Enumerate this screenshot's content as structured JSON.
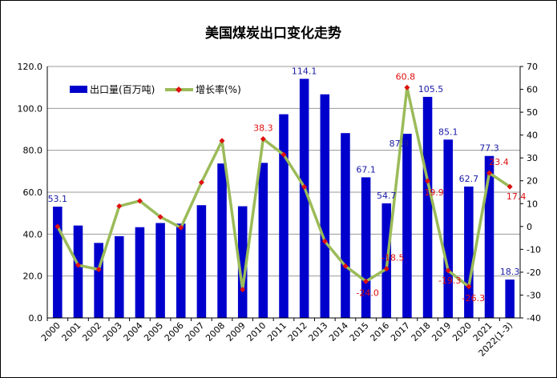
{
  "chart_data": {
    "type": "bar+line",
    "title": "美国煤炭出口变化走势",
    "categories": [
      "2000",
      "2001",
      "2002",
      "2003",
      "2004",
      "2005",
      "2006",
      "2007",
      "2008",
      "2009",
      "2010",
      "2011",
      "2012",
      "2013",
      "2014",
      "2015",
      "2016",
      "2017",
      "2018",
      "2019",
      "2020",
      "2021",
      "2022(1-3)"
    ],
    "series": [
      {
        "name": "出口量(百万吨)",
        "type": "bar",
        "axis": "left",
        "color": "#0000cc",
        "values": [
          53.1,
          44.1,
          35.8,
          39.0,
          43.3,
          45.3,
          45.0,
          53.8,
          73.7,
          53.3,
          74.0,
          97.2,
          114.1,
          106.7,
          88.2,
          67.1,
          54.7,
          87.9,
          105.5,
          85.1,
          62.7,
          77.3,
          18.3
        ]
      },
      {
        "name": "增长率(%)",
        "type": "line",
        "axis": "right",
        "color": "#9bbb59",
        "marker_color": "#e01010",
        "values": [
          0.0,
          -16.9,
          -18.8,
          8.9,
          11.2,
          4.2,
          -0.5,
          19.3,
          37.5,
          -27.6,
          38.3,
          31.4,
          17.3,
          -6.5,
          -17.3,
          -24.0,
          -18.5,
          60.8,
          19.9,
          -19.3,
          -26.3,
          23.4,
          17.4
        ]
      }
    ],
    "bar_labels": [
      {
        "index": 0,
        "text": "53.1"
      },
      {
        "index": 12,
        "text": "114.1"
      },
      {
        "index": 15,
        "text": "67.1"
      },
      {
        "index": 16,
        "text": "54.7"
      },
      {
        "index": 17,
        "text": "87.9"
      },
      {
        "index": 18,
        "text": "105.5"
      },
      {
        "index": 19,
        "text": "85.1"
      },
      {
        "index": 20,
        "text": "62.7"
      },
      {
        "index": 21,
        "text": "77.3"
      },
      {
        "index": 22,
        "text": "18.3"
      }
    ],
    "rate_labels": [
      {
        "index": 10,
        "text": "38.3"
      },
      {
        "index": 15,
        "text": "-24.0"
      },
      {
        "index": 16,
        "text": "-18.5"
      },
      {
        "index": 17,
        "text": "60.8"
      },
      {
        "index": 18,
        "text": "19.9"
      },
      {
        "index": 19,
        "text": "-19.3"
      },
      {
        "index": 20,
        "text": "-26.3"
      },
      {
        "index": 21,
        "text": "23.4"
      },
      {
        "index": 22,
        "text": "17.4"
      }
    ],
    "left_axis": {
      "min": 0,
      "max": 120,
      "step": 20,
      "ticks": [
        "0.0",
        "20.0",
        "40.0",
        "60.0",
        "80.0",
        "100.0",
        "120.0"
      ]
    },
    "right_axis": {
      "min": -40,
      "max": 70,
      "step": 10,
      "ticks": [
        "-40",
        "-30",
        "-20",
        "-10",
        "0",
        "10",
        "20",
        "30",
        "40",
        "50",
        "60",
        "70"
      ]
    },
    "grid": true,
    "legend_position": "top-left"
  }
}
